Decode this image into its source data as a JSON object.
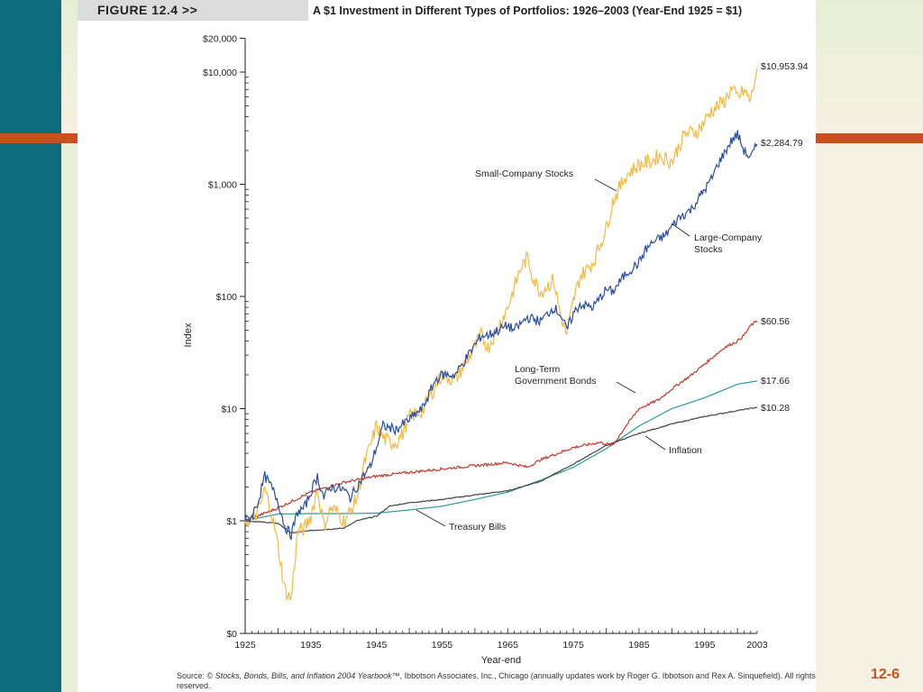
{
  "figure": {
    "tag": "FIGURE 12.4 >>",
    "title": "A $1 Investment in Different Types of Portfolios: 1926–2003 (Year-End 1925 = $1)"
  },
  "source": {
    "prefix": "Source: © ",
    "book": "Stocks, Bonds, Bills, and Inflation 2004 Yearbook",
    "rest": "™, Ibbotson Associates, Inc., Chicago (annually updates work by Roger G. Ibbotson and Rex A. Sinquefield). All rights reserved."
  },
  "slide": {
    "page_number": "12-6"
  },
  "colors": {
    "small_company": "#f5b942",
    "large_company": "#2a4fa0",
    "long_term_bonds": "#c0392b",
    "treasury_bills": "#2a9a9a",
    "inflation": "#444444",
    "accent": "#c8501e",
    "side_band": "#0e6b7e"
  },
  "chart_data": {
    "type": "line",
    "xlabel": "Year-end",
    "ylabel": "Index",
    "yscale": "log",
    "xlim": [
      1925,
      2003
    ],
    "ylim": [
      0.1,
      20000
    ],
    "x_ticks": [
      "1925",
      "1935",
      "1945",
      "1955",
      "1965",
      "1975",
      "1985",
      "1995",
      "2003"
    ],
    "y_ticks": [
      {
        "value": 0.1,
        "label": "$0"
      },
      {
        "value": 1,
        "label": "$1"
      },
      {
        "value": 10,
        "label": "$10"
      },
      {
        "value": 100,
        "label": "$100"
      },
      {
        "value": 1000,
        "label": "$1,000"
      },
      {
        "value": 10000,
        "label": "$10,000"
      },
      {
        "value": 20000,
        "label": "$20,000"
      }
    ],
    "grid": false,
    "series": [
      {
        "name": "Small-Company Stocks",
        "color": "#f5b942",
        "end_label": "$10,953.94",
        "x": [
          1925,
          1926,
          1927,
          1928,
          1929,
          1930,
          1931,
          1932,
          1933,
          1934,
          1935,
          1936,
          1937,
          1938,
          1939,
          1940,
          1941,
          1942,
          1943,
          1944,
          1945,
          1946,
          1947,
          1948,
          1949,
          1950,
          1952,
          1954,
          1955,
          1957,
          1959,
          1961,
          1962,
          1965,
          1967,
          1968,
          1969,
          1970,
          1972,
          1973,
          1974,
          1975,
          1976,
          1978,
          1980,
          1981,
          1983,
          1985,
          1987,
          1988,
          1990,
          1992,
          1994,
          1996,
          1998,
          1999,
          2000,
          2001,
          2002,
          2003
        ],
        "values": [
          1,
          1.0,
          1.2,
          1.9,
          1.2,
          0.6,
          0.25,
          0.2,
          0.8,
          0.85,
          1.1,
          1.9,
          0.9,
          1.3,
          1.2,
          1.0,
          1.2,
          1.6,
          3.0,
          4.5,
          7.0,
          5.5,
          5.0,
          5.0,
          6.0,
          8.5,
          9.5,
          16,
          20,
          18,
          28,
          45,
          35,
          80,
          180,
          220,
          140,
          110,
          140,
          70,
          45,
          90,
          150,
          200,
          400,
          700,
          1200,
          1500,
          1600,
          1800,
          1600,
          2800,
          3000,
          4500,
          5500,
          7000,
          6000,
          6800,
          5500,
          10953.94
        ]
      },
      {
        "name": "Large-Company Stocks",
        "color": "#2a4fa0",
        "end_label": "$2,284.79",
        "x": [
          1925,
          1926,
          1927,
          1928,
          1929,
          1930,
          1931,
          1932,
          1933,
          1934,
          1935,
          1936,
          1937,
          1938,
          1940,
          1941,
          1942,
          1943,
          1944,
          1945,
          1946,
          1948,
          1950,
          1952,
          1954,
          1955,
          1957,
          1959,
          1961,
          1962,
          1965,
          1966,
          1968,
          1970,
          1972,
          1973,
          1974,
          1975,
          1976,
          1978,
          1980,
          1981,
          1983,
          1985,
          1986,
          1987,
          1989,
          1991,
          1993,
          1995,
          1996,
          1997,
          1998,
          1999,
          2000,
          2001,
          2002,
          2003
        ],
        "values": [
          1,
          1.1,
          1.5,
          2.5,
          2.0,
          1.5,
          0.9,
          0.75,
          1.2,
          1.3,
          1.8,
          2.5,
          1.6,
          2.0,
          1.9,
          1.6,
          2.0,
          2.5,
          3.0,
          4.5,
          7.0,
          6.5,
          8.0,
          10,
          18,
          20,
          20,
          30,
          45,
          45,
          55,
          50,
          65,
          60,
          80,
          70,
          50,
          70,
          85,
          80,
          115,
          110,
          160,
          200,
          260,
          300,
          350,
          500,
          600,
          900,
          1100,
          1500,
          1900,
          2400,
          2800,
          2000,
          1700,
          2284.79
        ]
      },
      {
        "name": "Long-Term Government Bonds",
        "color": "#c0392b",
        "end_label": "$60.56",
        "x": [
          1925,
          1930,
          1935,
          1940,
          1945,
          1950,
          1955,
          1960,
          1965,
          1968,
          1970,
          1975,
          1979,
          1981,
          1983,
          1985,
          1988,
          1990,
          1993,
          1995,
          1998,
          2000,
          2001,
          2002,
          2003
        ],
        "values": [
          1,
          1.3,
          1.8,
          2.2,
          2.5,
          2.7,
          2.9,
          3.1,
          3.3,
          3.0,
          3.5,
          4.5,
          5.0,
          4.7,
          7.0,
          10.0,
          12,
          15,
          20,
          25,
          35,
          40,
          45,
          55,
          60.56
        ]
      },
      {
        "name": "Treasury Bills",
        "color": "#2a9a9a",
        "end_label": "$17.66",
        "x": [
          1925,
          1930,
          1935,
          1940,
          1945,
          1950,
          1955,
          1960,
          1965,
          1970,
          1975,
          1980,
          1985,
          1990,
          1995,
          2000,
          2003
        ],
        "values": [
          1,
          1.15,
          1.16,
          1.16,
          1.17,
          1.25,
          1.35,
          1.55,
          1.8,
          2.3,
          3.0,
          4.4,
          7.0,
          10,
          12.5,
          16.5,
          17.66
        ]
      },
      {
        "name": "Inflation",
        "color": "#444444",
        "end_label": "$10.28",
        "x": [
          1925,
          1930,
          1932,
          1935,
          1940,
          1942,
          1945,
          1947,
          1950,
          1955,
          1960,
          1965,
          1970,
          1975,
          1980,
          1985,
          1990,
          1995,
          2000,
          2003
        ],
        "values": [
          1,
          0.95,
          0.78,
          0.82,
          0.86,
          1.0,
          1.1,
          1.35,
          1.45,
          1.55,
          1.7,
          1.85,
          2.25,
          3.2,
          4.7,
          6.0,
          7.3,
          8.5,
          9.6,
          10.28
        ]
      }
    ]
  }
}
